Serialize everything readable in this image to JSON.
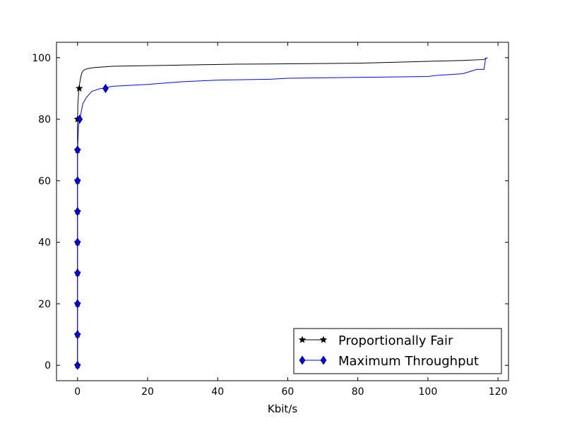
{
  "chart_data": {
    "type": "line",
    "title": "",
    "xlabel": "Kbit/s",
    "ylabel": "",
    "xlim": [
      -6,
      123
    ],
    "ylim": [
      -5,
      105
    ],
    "xticks": [
      0,
      20,
      40,
      60,
      80,
      100,
      120
    ],
    "yticks": [
      0,
      20,
      40,
      60,
      80,
      100
    ],
    "xtick_labels": [
      "0",
      "20",
      "40",
      "60",
      "80",
      "100",
      "120"
    ],
    "ytick_labels": [
      "0",
      "20",
      "40",
      "60",
      "80",
      "100"
    ],
    "grid": false,
    "legend_position": "lower-right",
    "series": [
      {
        "name": "Proportionally Fair",
        "color": "#000000",
        "marker": "star",
        "points": [
          [
            0,
            0
          ],
          [
            0,
            10
          ],
          [
            0,
            20
          ],
          [
            0,
            30
          ],
          [
            0,
            40
          ],
          [
            0,
            50
          ],
          [
            0,
            60
          ],
          [
            0,
            70
          ],
          [
            0,
            80
          ],
          [
            0.1,
            85
          ],
          [
            0.4,
            90
          ],
          [
            0.8,
            93
          ],
          [
            1.2,
            95
          ],
          [
            1.8,
            96
          ],
          [
            3,
            96.5
          ],
          [
            5,
            96.8
          ],
          [
            10,
            97.2
          ],
          [
            20,
            97.4
          ],
          [
            30,
            97.6
          ],
          [
            45,
            97.9
          ],
          [
            60,
            98
          ],
          [
            80,
            98.2
          ],
          [
            90,
            98.5
          ],
          [
            100,
            98.8
          ],
          [
            110,
            99.1
          ],
          [
            116,
            99.4
          ],
          [
            117,
            100
          ]
        ],
        "markers": [
          [
            0,
            0
          ],
          [
            0,
            10
          ],
          [
            0,
            20
          ],
          [
            0,
            30
          ],
          [
            0,
            40
          ],
          [
            0,
            50
          ],
          [
            0,
            60
          ],
          [
            0,
            70
          ],
          [
            0,
            80
          ],
          [
            0.5,
            90
          ]
        ]
      },
      {
        "name": "Maximum Throughput",
        "color": "#0000ff",
        "marker": "diamond",
        "points": [
          [
            0,
            0
          ],
          [
            0,
            10
          ],
          [
            0,
            20
          ],
          [
            0,
            30
          ],
          [
            0,
            40
          ],
          [
            0,
            50
          ],
          [
            0,
            60
          ],
          [
            0,
            70
          ],
          [
            0.3,
            78
          ],
          [
            0.6,
            80
          ],
          [
            1,
            82
          ],
          [
            1.5,
            85
          ],
          [
            2.5,
            87
          ],
          [
            4,
            89
          ],
          [
            6,
            89.8
          ],
          [
            10,
            90.7
          ],
          [
            20,
            91.3
          ],
          [
            30,
            92.2
          ],
          [
            40,
            92.7
          ],
          [
            55,
            93
          ],
          [
            60,
            93.3
          ],
          [
            80,
            93.6
          ],
          [
            100,
            93.9
          ],
          [
            103,
            94.3
          ],
          [
            106,
            94.5
          ],
          [
            110,
            94.8
          ],
          [
            114,
            96.2
          ],
          [
            116,
            96.2
          ],
          [
            116.5,
            100
          ]
        ],
        "markers": [
          [
            0,
            0
          ],
          [
            0,
            10
          ],
          [
            0,
            20
          ],
          [
            0,
            30
          ],
          [
            0,
            40
          ],
          [
            0,
            50
          ],
          [
            0,
            60
          ],
          [
            0,
            70
          ],
          [
            0.6,
            80
          ],
          [
            8,
            90
          ]
        ]
      }
    ]
  }
}
